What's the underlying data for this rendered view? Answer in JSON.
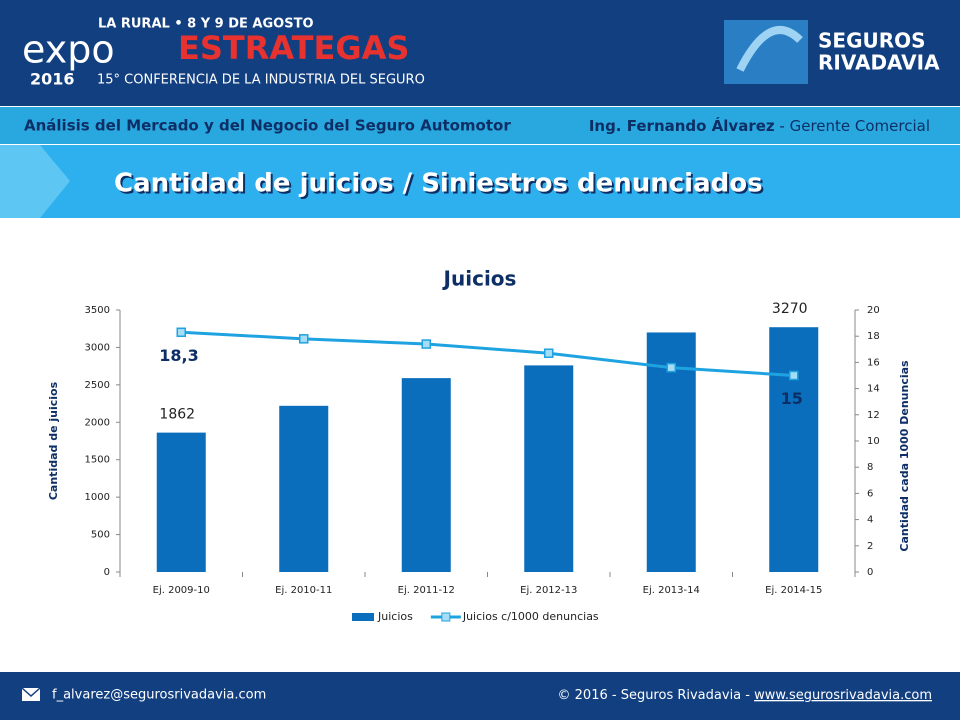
{
  "header": {
    "event_line": "LA RURAL • 8 Y 9 DE AGOSTO",
    "expo": "expo",
    "estrategas": "ESTRATEGAS",
    "year": "2016",
    "conference": "15° CONFERENCIA DE LA INDUSTRIA DEL SEGURO",
    "brand_top": "SEGUROS",
    "brand_bottom": "RIVADAVIA"
  },
  "strip": {
    "left": "Análisis del Mercado y del Negocio del Seguro Automotor",
    "author": "Ing. Fernando Álvarez",
    "role": " - Gerente Comercial"
  },
  "slide_title": "Cantidad de juicios / Siniestros denunciados",
  "footer": {
    "email": "f_alvarez@segurosrivadavia.com",
    "copyright": "© 2016 - Seguros Rivadavia - ",
    "website": "www.segurosrivadavia.com"
  },
  "chart_data": {
    "type": "bar_line",
    "title": "Juicios",
    "y_label": "Cantidad de juicios",
    "y2_label": "Cantidad cada 1000 Denuncias",
    "categories": [
      "Ej. 2009-10",
      "Ej. 2010-11",
      "Ej. 2011-12",
      "Ej. 2012-13",
      "Ej. 2013-14",
      "Ej. 2014-15"
    ],
    "series": [
      {
        "name": "Juicios",
        "type": "bar",
        "color": "#0a6ebd",
        "values": [
          1862,
          2220,
          2590,
          2760,
          3200,
          3270
        ],
        "value_labels": [
          "1862",
          null,
          null,
          null,
          null,
          "3270"
        ]
      },
      {
        "name": "Juicios c/1000 denuncias",
        "type": "line",
        "axis": "y2",
        "color": "#1fa3e0",
        "values": [
          18.3,
          17.8,
          17.4,
          16.7,
          15.6,
          15
        ],
        "value_labels": [
          "18,3",
          null,
          null,
          null,
          null,
          "15"
        ]
      }
    ],
    "ylim": [
      0,
      3500
    ],
    "yticks": [
      0,
      500,
      1000,
      1500,
      2000,
      2500,
      3000,
      3500
    ],
    "y2lim": [
      0,
      20
    ],
    "y2ticks": [
      0,
      2,
      4,
      6,
      8,
      10,
      12,
      14,
      16,
      18,
      20
    ],
    "legend": "bottom"
  }
}
